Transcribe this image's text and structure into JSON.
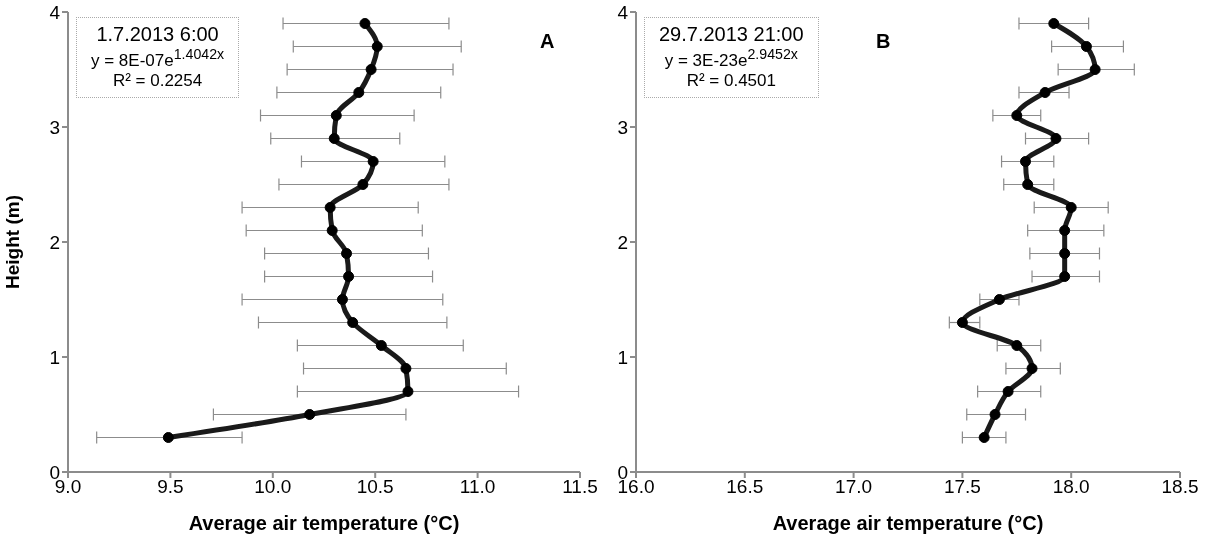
{
  "chart_data": [
    {
      "type": "line",
      "xlabel": "Average air temperature (°C)",
      "ylabel": "Height (m)",
      "annotations": [
        "1.7.2013  6:00",
        "y = 8E-07e$^{1.4042x}$",
        "R² = 0.2254",
        "A"
      ],
      "series": [
        {
          "color": "#1a1a1a",
          "x": [
            9.49,
            10.18,
            10.66,
            10.65,
            10.53,
            10.39,
            10.34,
            10.37,
            10.36,
            10.29,
            10.28,
            10.44,
            10.49,
            10.3,
            10.31,
            10.42,
            10.48,
            10.51,
            10.45
          ],
          "values": [
            0.3,
            0.5,
            0.7,
            0.9,
            1.1,
            1.3,
            1.5,
            1.7,
            1.9,
            2.1,
            2.3,
            2.5,
            2.7,
            2.9,
            3.1,
            3.3,
            3.5,
            3.7,
            3.9
          ],
          "xerrors": [
            [
              9.14,
              9.85
            ],
            [
              9.71,
              10.65
            ],
            [
              10.12,
              11.2
            ],
            [
              10.15,
              11.14
            ],
            [
              10.12,
              10.93
            ],
            [
              9.93,
              10.85
            ],
            [
              9.85,
              10.83
            ],
            [
              9.96,
              10.78
            ],
            [
              9.96,
              10.76
            ],
            [
              9.87,
              10.73
            ],
            [
              9.85,
              10.71
            ],
            [
              10.03,
              10.86
            ],
            [
              10.14,
              10.84
            ],
            [
              9.99,
              10.62
            ],
            [
              9.94,
              10.69
            ],
            [
              10.02,
              10.82
            ],
            [
              10.07,
              10.88
            ],
            [
              10.1,
              10.92
            ],
            [
              10.05,
              10.86
            ]
          ]
        }
      ],
      "xlim": [
        9.0,
        11.5
      ],
      "xticks": [
        {
          "value": 9,
          "label": "9.0"
        },
        {
          "value": 9.5,
          "label": "9.5"
        },
        {
          "value": 10,
          "label": "10.0"
        },
        {
          "value": 10.5,
          "label": "10.5"
        },
        {
          "value": 11,
          "label": "11.0"
        },
        {
          "value": 11.5,
          "label": "11.5"
        }
      ],
      "ylim": [
        0,
        4
      ],
      "yticks": [
        0,
        1,
        2,
        3,
        4
      ],
      "marker": "circle",
      "line_style": "solid",
      "grid": false,
      "legend": false
    },
    {
      "type": "line",
      "xlabel": "Average air temperature (°C)",
      "annotations": [
        "29.7.2013  21:00",
        "y = 3E-23e$^{2.9452x}$",
        "R² = 0.4501",
        "B"
      ],
      "series": [
        {
          "color": "#1a1a1a",
          "x": [
            17.6,
            17.65,
            17.71,
            17.82,
            17.75,
            17.5,
            17.67,
            17.97,
            17.97,
            17.97,
            18.0,
            17.8,
            17.79,
            17.93,
            17.75,
            17.88,
            18.11,
            18.07,
            17.92
          ],
          "values": [
            0.3,
            0.5,
            0.7,
            0.9,
            1.1,
            1.3,
            1.5,
            1.7,
            1.9,
            2.1,
            2.3,
            2.5,
            2.7,
            2.9,
            3.1,
            3.3,
            3.5,
            3.7,
            3.9
          ],
          "xerrors": [
            [
              17.5,
              17.7
            ],
            [
              17.52,
              17.79
            ],
            [
              17.57,
              17.86
            ],
            [
              17.7,
              17.95
            ],
            [
              17.66,
              17.86
            ],
            [
              17.44,
              17.58
            ],
            [
              17.58,
              17.76
            ],
            [
              17.82,
              18.13
            ],
            [
              17.81,
              18.13
            ],
            [
              17.8,
              18.15
            ],
            [
              17.83,
              18.17
            ],
            [
              17.69,
              17.92
            ],
            [
              17.68,
              17.92
            ],
            [
              17.79,
              18.08
            ],
            [
              17.64,
              17.86
            ],
            [
              17.76,
              17.99
            ],
            [
              17.94,
              18.29
            ],
            [
              17.91,
              18.24
            ],
            [
              17.76,
              18.08
            ]
          ]
        }
      ],
      "xlim": [
        16.0,
        18.5
      ],
      "xticks": [
        {
          "value": 16,
          "label": "16.0"
        },
        {
          "value": 16.5,
          "label": "16.5"
        },
        {
          "value": 17,
          "label": "17.0"
        },
        {
          "value": 17.5,
          "label": "17.5"
        },
        {
          "value": 18,
          "label": "18.0"
        },
        {
          "value": 18.5,
          "label": "18.5"
        }
      ],
      "ylim": [
        0,
        4
      ],
      "yticks": [
        0,
        1,
        2,
        3,
        4
      ],
      "marker": "circle",
      "line_style": "solid",
      "grid": false,
      "legend": false
    }
  ]
}
